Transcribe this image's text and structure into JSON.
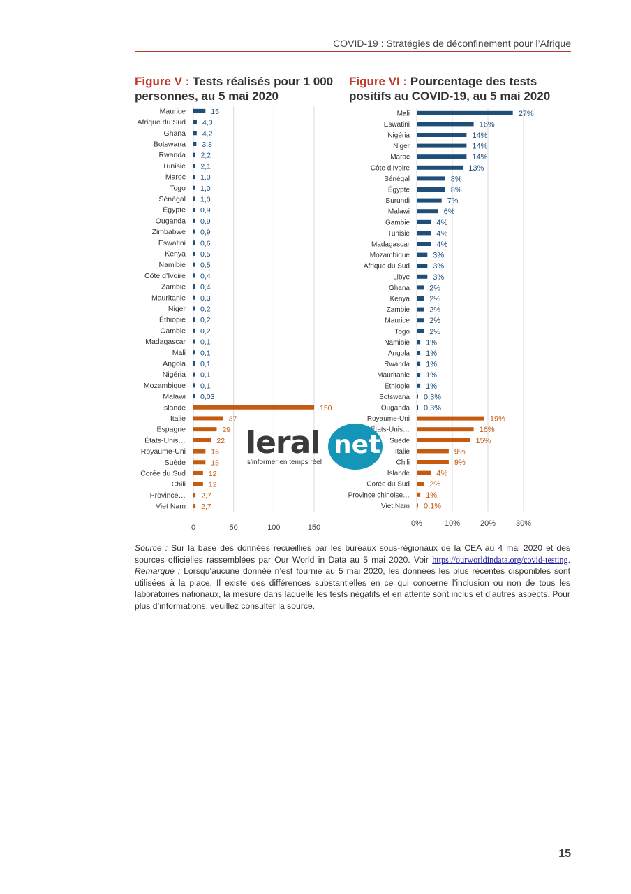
{
  "header": {
    "running_title": "COVID-19 : Stratégies de déconfinement pour l’Afrique"
  },
  "figure5": {
    "label": "Figure V :",
    "title": "Tests réalisés pour 1 000 personnes, au 5 mai 2020"
  },
  "figure6": {
    "label": "Figure VI :",
    "title": "Pourcentage des tests positifs au COVID-19, au 5 mai 2020"
  },
  "colors": {
    "africa": "#1f4e79",
    "other": "#c55a11",
    "accent": "#c0392b"
  },
  "chart_data": [
    {
      "type": "bar",
      "orientation": "horizontal",
      "title": "Tests réalisés pour 1 000 personnes, au 5 mai 2020",
      "categories": [
        "Maurice",
        "Afrique du Sud",
        "Ghana",
        "Botswana",
        "Rwanda",
        "Tunisie",
        "Maroc",
        "Togo",
        "Sénégal",
        "Égypte",
        "Ouganda",
        "Zimbabwe",
        "Eswatini",
        "Kenya",
        "Namibie",
        "Côte d’Ivoire",
        "Zambie",
        "Mauritanie",
        "Niger",
        "Éthiopie",
        "Gambie",
        "Madagascar",
        "Mali",
        "Angola",
        "Nigéria",
        "Mozambique",
        "Malawi",
        "Islande",
        "Italie",
        "Espagne",
        "États-Unis…",
        "Royaume-Uni",
        "Suède",
        "Corée du Sud",
        "Chili",
        "Province…",
        "Viet Nam"
      ],
      "values": [
        15,
        4.3,
        4.2,
        3.8,
        2.2,
        2.1,
        1.0,
        1.0,
        1.0,
        0.9,
        0.9,
        0.9,
        0.6,
        0.5,
        0.5,
        0.4,
        0.4,
        0.3,
        0.2,
        0.2,
        0.2,
        0.1,
        0.1,
        0.1,
        0.1,
        0.1,
        0.03,
        150,
        37,
        29,
        22,
        15,
        15,
        12,
        12,
        2.7,
        2.7
      ],
      "value_labels": [
        "15",
        "4,3",
        "4,2",
        "3,8",
        "2,2",
        "2,1",
        "1,0",
        "1,0",
        "1,0",
        "0,9",
        "0,9",
        "0,9",
        "0,6",
        "0,5",
        "0,5",
        "0,4",
        "0,4",
        "0,3",
        "0,2",
        "0,2",
        "0,2",
        "0,1",
        "0,1",
        "0,1",
        "0,1",
        "0,1",
        "0,03",
        "150",
        "37",
        "29",
        "22",
        "15",
        "15",
        "12",
        "12",
        "2,7",
        "2,7"
      ],
      "group": [
        "africa",
        "africa",
        "africa",
        "africa",
        "africa",
        "africa",
        "africa",
        "africa",
        "africa",
        "africa",
        "africa",
        "africa",
        "africa",
        "africa",
        "africa",
        "africa",
        "africa",
        "africa",
        "africa",
        "africa",
        "africa",
        "africa",
        "africa",
        "africa",
        "africa",
        "africa",
        "africa",
        "other",
        "other",
        "other",
        "other",
        "other",
        "other",
        "other",
        "other",
        "other",
        "other"
      ],
      "xlim": [
        0,
        150
      ],
      "x_ticks": [
        "0",
        "50",
        "100",
        "150"
      ],
      "grid": true
    },
    {
      "type": "bar",
      "orientation": "horizontal",
      "title": "Pourcentage des tests positifs au COVID-19, au 5 mai 2020",
      "categories": [
        "Mali",
        "Eswatini",
        "Nigéria",
        "Niger",
        "Maroc",
        "Côte d’Ivoire",
        "Sénégal",
        "Égypte",
        "Burundi",
        "Malawi",
        "Gambie",
        "Tunisie",
        "Madagascar",
        "Mozambique",
        "Afrique du Sud",
        "Libye",
        "Ghana",
        "Kenya",
        "Zambie",
        "Maurice",
        "Togo",
        "Namibie",
        "Angola",
        "Rwanda",
        "Mauritanie",
        "Éthiopie",
        "Botswana",
        "Ouganda",
        "Royaume-Uni",
        "États-Unis…",
        "Suède",
        "Italie",
        "Chili",
        "Islande",
        "Corée du Sud",
        "Province chinoise…",
        "Viet Nam"
      ],
      "values": [
        27,
        16,
        14,
        14,
        14,
        13,
        8,
        8,
        7,
        6,
        4,
        4,
        4,
        3,
        3,
        3,
        2,
        2,
        2,
        2,
        2,
        1,
        1,
        1,
        1,
        1,
        0.3,
        0.3,
        19,
        16,
        15,
        9,
        9,
        4,
        2,
        1,
        0.1
      ],
      "value_labels": [
        "27%",
        "16%",
        "14%",
        "14%",
        "14%",
        "13%",
        "8%",
        "8%",
        "7%",
        "6%",
        "4%",
        "4%",
        "4%",
        "3%",
        "3%",
        "3%",
        "2%",
        "2%",
        "2%",
        "2%",
        "2%",
        "1%",
        "1%",
        "1%",
        "1%",
        "1%",
        "0,3%",
        "0,3%",
        "19%",
        "16%",
        "15%",
        "9%",
        "9%",
        "4%",
        "2%",
        "1%",
        "0,1%"
      ],
      "group": [
        "africa",
        "africa",
        "africa",
        "africa",
        "africa",
        "africa",
        "africa",
        "africa",
        "africa",
        "africa",
        "africa",
        "africa",
        "africa",
        "africa",
        "africa",
        "africa",
        "africa",
        "africa",
        "africa",
        "africa",
        "africa",
        "africa",
        "africa",
        "africa",
        "africa",
        "africa",
        "africa",
        "africa",
        "other",
        "other",
        "other",
        "other",
        "other",
        "other",
        "other",
        "other",
        "other"
      ],
      "xlim": [
        0,
        30
      ],
      "x_ticks": [
        "0%",
        "10%",
        "20%",
        "30%"
      ],
      "grid": true
    }
  ],
  "notes": {
    "source_label": "Source :",
    "source_text": " Sur la base des données recueillies par les bureaux sous-régionaux de la CEA au 4 mai 2020 et des sources officielles rassemblées par Our World in Data au 5 mai 2020. Voir ",
    "source_link": "https://ourworldindata.org/covid-testing",
    "source_end": ".",
    "remark_label": "Remarque :",
    "remark_text": " Lorsqu’aucune donnée n’est fournie au 5 mai 2020, les données les plus récentes disponibles sont utilisées à la place. Il existe des différences substantielles en ce qui concerne l’inclusion ou non de tous les laboratoires nationaux, la mesure dans laquelle les tests négatifs et en attente sont inclus et d’autres aspects. Pour plus d’informations, veuillez consulter la source."
  },
  "watermark": {
    "brand": "leral",
    "brand_suffix": "net",
    "tagline": "s'informer en temps réel"
  },
  "page_number": "15"
}
